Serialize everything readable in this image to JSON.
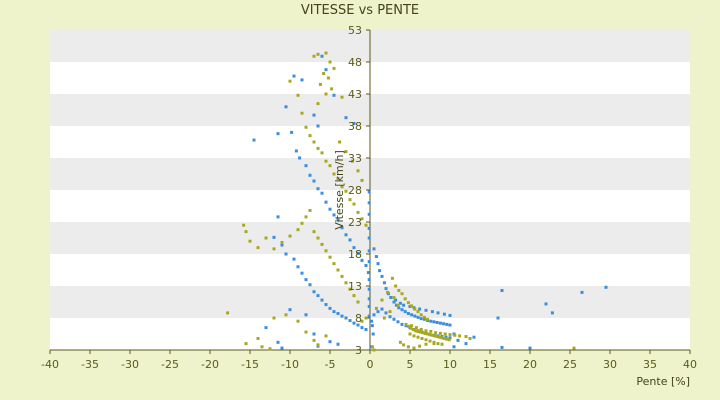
{
  "chart_data": {
    "type": "scatter",
    "title": "VITESSE vs PENTE",
    "xlabel": "Pente [%]",
    "ylabel": "Vitesse [km/h]",
    "xlim": [
      -40,
      40
    ],
    "ylim": [
      3,
      53
    ],
    "x_ticks": [
      -40,
      -35,
      -30,
      -25,
      -20,
      -15,
      -10,
      -5,
      0,
      5,
      10,
      15,
      20,
      25,
      30,
      35,
      40
    ],
    "y_ticks": [
      3,
      8,
      13,
      18,
      23,
      28,
      33,
      38,
      43,
      48,
      53
    ],
    "grid": "horizontal bands",
    "colors": {
      "background": "#eef3cc",
      "plot_band_light": "#ffffff",
      "plot_band_dark": "#ececec",
      "axis": "#5a5a1a",
      "text": "#444418"
    },
    "series": [
      {
        "color": "#3a8ee0",
        "points": [
          [
            -14.5,
            35.8
          ],
          [
            -11.5,
            36.8
          ],
          [
            -10.5,
            41.0
          ],
          [
            -9.5,
            45.8
          ],
          [
            -8.5,
            45.2
          ],
          [
            -7.0,
            39.7
          ],
          [
            -6.5,
            38.0
          ],
          [
            -6.0,
            48.9
          ],
          [
            -5.5,
            46.8
          ],
          [
            -4.5,
            42.8
          ],
          [
            -3.0,
            39.3
          ],
          [
            -2.0,
            38.4
          ],
          [
            -9.8,
            37.0
          ],
          [
            -9.2,
            34.1
          ],
          [
            -8.8,
            33.0
          ],
          [
            -8.0,
            31.8
          ],
          [
            -7.5,
            30.3
          ],
          [
            -7.0,
            29.4
          ],
          [
            -6.5,
            28.2
          ],
          [
            -6.0,
            27.5
          ],
          [
            -5.5,
            26.1
          ],
          [
            -5.0,
            25.0
          ],
          [
            -4.5,
            24.1
          ],
          [
            -4.0,
            23.3
          ],
          [
            -3.5,
            22.1
          ],
          [
            -3.0,
            21.0
          ],
          [
            -2.5,
            20.2
          ],
          [
            -2.0,
            19.0
          ],
          [
            -1.5,
            18.1
          ],
          [
            -1.0,
            17.0
          ],
          [
            -0.5,
            16.2
          ],
          [
            -0.2,
            15.1
          ],
          [
            -0.1,
            27.7
          ],
          [
            -0.1,
            26.0
          ],
          [
            -0.1,
            24.2
          ],
          [
            -0.1,
            22.0
          ],
          [
            -11.5,
            23.8
          ],
          [
            -12.0,
            20.6
          ],
          [
            -11.0,
            19.4
          ],
          [
            -10.5,
            18.0
          ],
          [
            -9.5,
            17.2
          ],
          [
            -9.0,
            16.0
          ],
          [
            -8.5,
            15.0
          ],
          [
            -8.0,
            14.0
          ],
          [
            -7.5,
            13.2
          ],
          [
            -7.0,
            12.1
          ],
          [
            -6.5,
            11.5
          ],
          [
            -6.0,
            10.8
          ],
          [
            -5.5,
            10.1
          ],
          [
            -5.0,
            9.5
          ],
          [
            -4.5,
            9.0
          ],
          [
            -4.0,
            8.7
          ],
          [
            -3.5,
            8.3
          ],
          [
            -3.0,
            8.0
          ],
          [
            -2.5,
            7.6
          ],
          [
            -2.0,
            7.2
          ],
          [
            -1.5,
            6.9
          ],
          [
            -1.0,
            6.5
          ],
          [
            -0.5,
            6.2
          ],
          [
            -13.0,
            6.5
          ],
          [
            -11.5,
            4.2
          ],
          [
            -11.0,
            3.3
          ],
          [
            -10.0,
            9.3
          ],
          [
            -8.0,
            8.5
          ],
          [
            -7.0,
            5.5
          ],
          [
            -6.5,
            3.6
          ],
          [
            -5.0,
            4.3
          ],
          [
            -4.0,
            3.9
          ],
          [
            0.5,
            18.8
          ],
          [
            0.8,
            17.6
          ],
          [
            1.0,
            16.5
          ],
          [
            1.2,
            15.4
          ],
          [
            1.5,
            14.5
          ],
          [
            1.8,
            13.5
          ],
          [
            2.0,
            12.6
          ],
          [
            2.3,
            11.8
          ],
          [
            2.6,
            11.2
          ],
          [
            3.0,
            10.5
          ],
          [
            3.3,
            10.0
          ],
          [
            3.6,
            9.6
          ],
          [
            4.0,
            9.3
          ],
          [
            4.4,
            9.0
          ],
          [
            4.8,
            8.7
          ],
          [
            5.2,
            8.5
          ],
          [
            5.6,
            8.3
          ],
          [
            6.0,
            8.1
          ],
          [
            6.4,
            7.9
          ],
          [
            6.8,
            7.8
          ],
          [
            7.2,
            7.6
          ],
          [
            7.6,
            7.5
          ],
          [
            8.0,
            7.4
          ],
          [
            8.4,
            7.3
          ],
          [
            8.8,
            7.2
          ],
          [
            9.2,
            7.1
          ],
          [
            9.6,
            7.0
          ],
          [
            10.0,
            6.9
          ],
          [
            0.5,
            8.5
          ],
          [
            1.0,
            9.0
          ],
          [
            1.5,
            9.4
          ],
          [
            2.0,
            8.8
          ],
          [
            2.5,
            8.2
          ],
          [
            3.0,
            7.8
          ],
          [
            3.5,
            7.4
          ],
          [
            4.0,
            7.0
          ],
          [
            4.5,
            6.8
          ],
          [
            5.0,
            6.5
          ],
          [
            5.5,
            6.2
          ],
          [
            6.0,
            6.0
          ],
          [
            6.5,
            5.8
          ],
          [
            7.0,
            5.6
          ],
          [
            7.5,
            5.4
          ],
          [
            8.0,
            5.3
          ],
          [
            8.5,
            5.2
          ],
          [
            9.0,
            5.1
          ],
          [
            9.5,
            5.0
          ],
          [
            10.0,
            4.9
          ],
          [
            3.2,
            10.8
          ],
          [
            3.8,
            10.3
          ],
          [
            4.2,
            10.0
          ],
          [
            5.0,
            9.8
          ],
          [
            5.5,
            9.6
          ],
          [
            6.2,
            9.4
          ],
          [
            7.0,
            9.2
          ],
          [
            7.8,
            9.0
          ],
          [
            8.5,
            8.8
          ],
          [
            9.3,
            8.6
          ],
          [
            10.0,
            8.4
          ],
          [
            10.5,
            5.5
          ],
          [
            11.0,
            4.5
          ],
          [
            10.5,
            3.5
          ],
          [
            12.0,
            4.0
          ],
          [
            13.0,
            5.0
          ],
          [
            16.5,
            12.3
          ],
          [
            16.0,
            8.0
          ],
          [
            16.5,
            3.4
          ],
          [
            20.0,
            3.3
          ],
          [
            22.0,
            10.2
          ],
          [
            22.8,
            8.8
          ],
          [
            26.5,
            12.0
          ],
          [
            29.5,
            12.8
          ],
          [
            -0.1,
            20.5
          ],
          [
            -0.1,
            18.5
          ],
          [
            -0.1,
            16.8
          ],
          [
            -0.1,
            14.0
          ],
          [
            -0.1,
            12.5
          ],
          [
            -0.1,
            11.0
          ],
          [
            -0.1,
            9.8
          ],
          [
            -0.1,
            8.3
          ],
          [
            0.2,
            7.5
          ],
          [
            0.3,
            6.8
          ],
          [
            0.4,
            5.5
          ],
          [
            0.2,
            3.5
          ]
        ]
      },
      {
        "color": "#a8a820",
        "points": [
          [
            -7.0,
            48.9
          ],
          [
            -6.5,
            49.2
          ],
          [
            -5.5,
            49.4
          ],
          [
            -5.0,
            48.0
          ],
          [
            -4.5,
            47.0
          ],
          [
            -5.8,
            46.2
          ],
          [
            -5.2,
            45.5
          ],
          [
            -6.2,
            44.5
          ],
          [
            -4.8,
            43.8
          ],
          [
            -5.5,
            43.0
          ],
          [
            -3.5,
            42.5
          ],
          [
            -6.5,
            41.5
          ],
          [
            -10.0,
            45.0
          ],
          [
            -9.0,
            42.8
          ],
          [
            -8.5,
            40.0
          ],
          [
            -8.0,
            37.8
          ],
          [
            -7.5,
            36.5
          ],
          [
            -7.0,
            35.5
          ],
          [
            -6.5,
            34.5
          ],
          [
            -6.0,
            33.8
          ],
          [
            -5.5,
            32.5
          ],
          [
            -5.0,
            31.8
          ],
          [
            -4.5,
            30.5
          ],
          [
            -4.0,
            29.8
          ],
          [
            -3.5,
            28.5
          ],
          [
            -3.0,
            27.8
          ],
          [
            -2.5,
            26.5
          ],
          [
            -2.0,
            25.8
          ],
          [
            -1.5,
            24.5
          ],
          [
            -1.0,
            23.5
          ],
          [
            -0.5,
            22.5
          ],
          [
            -3.8,
            35.5
          ],
          [
            -3.0,
            34.0
          ],
          [
            -2.2,
            32.5
          ],
          [
            -1.5,
            31.0
          ],
          [
            -1.0,
            29.5
          ],
          [
            -15.8,
            22.5
          ],
          [
            -15.5,
            21.5
          ],
          [
            -15.0,
            20.0
          ],
          [
            -14.0,
            19.0
          ],
          [
            -13.0,
            20.5
          ],
          [
            -12.0,
            18.8
          ],
          [
            -11.0,
            19.8
          ],
          [
            -10.0,
            20.8
          ],
          [
            -9.0,
            21.8
          ],
          [
            -8.5,
            22.8
          ],
          [
            -8.0,
            23.8
          ],
          [
            -7.5,
            24.8
          ],
          [
            -7.0,
            21.5
          ],
          [
            -6.5,
            20.5
          ],
          [
            -6.0,
            19.5
          ],
          [
            -5.5,
            18.5
          ],
          [
            -5.0,
            17.5
          ],
          [
            -4.5,
            16.5
          ],
          [
            -4.0,
            15.5
          ],
          [
            -3.5,
            14.5
          ],
          [
            -3.0,
            13.5
          ],
          [
            -2.5,
            12.5
          ],
          [
            -2.0,
            11.5
          ],
          [
            -1.5,
            10.5
          ],
          [
            -17.8,
            8.8
          ],
          [
            -15.5,
            4.0
          ],
          [
            -14.0,
            4.8
          ],
          [
            -13.5,
            3.5
          ],
          [
            -12.5,
            3.2
          ],
          [
            -12.0,
            8.0
          ],
          [
            -10.5,
            8.5
          ],
          [
            -9.0,
            7.5
          ],
          [
            -8.0,
            5.8
          ],
          [
            -7.0,
            4.5
          ],
          [
            -6.5,
            3.8
          ],
          [
            -5.5,
            5.2
          ],
          [
            2.8,
            14.2
          ],
          [
            3.2,
            13.0
          ],
          [
            3.6,
            12.3
          ],
          [
            4.0,
            11.8
          ],
          [
            4.4,
            11.0
          ],
          [
            4.8,
            10.4
          ],
          [
            5.2,
            9.9
          ],
          [
            5.6,
            9.4
          ],
          [
            6.0,
            9.0
          ],
          [
            6.4,
            8.5
          ],
          [
            6.8,
            8.1
          ],
          [
            7.2,
            7.8
          ],
          [
            4.5,
            7.0
          ],
          [
            4.8,
            6.7
          ],
          [
            5.1,
            6.4
          ],
          [
            5.4,
            6.2
          ],
          [
            5.7,
            6.0
          ],
          [
            6.0,
            5.9
          ],
          [
            6.3,
            5.8
          ],
          [
            6.6,
            5.7
          ],
          [
            6.9,
            5.6
          ],
          [
            7.2,
            5.5
          ],
          [
            7.5,
            5.4
          ],
          [
            7.8,
            5.3
          ],
          [
            8.1,
            5.2
          ],
          [
            8.4,
            5.1
          ],
          [
            8.7,
            5.0
          ],
          [
            9.0,
            4.9
          ],
          [
            9.3,
            4.8
          ],
          [
            9.6,
            4.7
          ],
          [
            9.9,
            4.6
          ],
          [
            5.0,
            5.5
          ],
          [
            5.5,
            5.2
          ],
          [
            6.0,
            5.0
          ],
          [
            6.5,
            4.8
          ],
          [
            7.0,
            4.6
          ],
          [
            7.5,
            4.4
          ],
          [
            8.0,
            4.2
          ],
          [
            8.5,
            4.0
          ],
          [
            9.0,
            3.9
          ],
          [
            5.2,
            6.8
          ],
          [
            5.8,
            6.5
          ],
          [
            6.4,
            6.2
          ],
          [
            7.0,
            6.0
          ],
          [
            7.6,
            5.9
          ],
          [
            8.2,
            5.7
          ],
          [
            8.8,
            5.6
          ],
          [
            9.4,
            5.5
          ],
          [
            10.0,
            5.4
          ],
          [
            10.6,
            5.3
          ],
          [
            11.2,
            5.2
          ],
          [
            12.0,
            5.1
          ],
          [
            12.5,
            4.8
          ],
          [
            3.8,
            4.2
          ],
          [
            4.2,
            3.8
          ],
          [
            4.8,
            3.5
          ],
          [
            5.5,
            3.3
          ],
          [
            6.2,
            3.6
          ],
          [
            7.0,
            3.9
          ],
          [
            8.0,
            4.0
          ],
          [
            0.5,
            3.0
          ],
          [
            0.3,
            3.5
          ],
          [
            25.5,
            3.3
          ],
          [
            -1.0,
            7.5
          ],
          [
            -0.5,
            8.0
          ],
          [
            0.8,
            9.5
          ],
          [
            1.5,
            10.8
          ],
          [
            2.2,
            12.0
          ],
          [
            3.0,
            11.2
          ],
          [
            3.5,
            10.0
          ],
          [
            2.5,
            9.0
          ],
          [
            1.8,
            8.0
          ]
        ]
      }
    ]
  }
}
